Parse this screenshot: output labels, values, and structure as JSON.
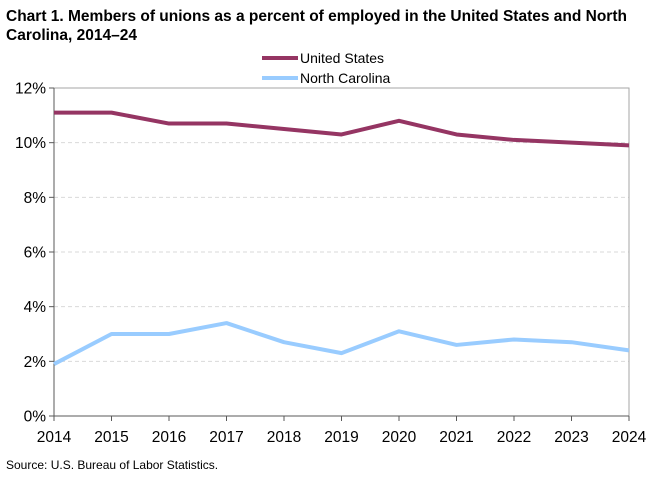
{
  "chart_data": {
    "type": "line",
    "title": "Chart 1. Members of unions as a percent of employed  in the United States and North Carolina, 2014–24",
    "xlabel": "",
    "ylabel": "",
    "x": [
      "2014",
      "2015",
      "2016",
      "2017",
      "2018",
      "2019",
      "2020",
      "2021",
      "2022",
      "2023",
      "2024"
    ],
    "ylim": [
      0,
      12
    ],
    "y_ticks": [
      {
        "value": 0,
        "label": "0%"
      },
      {
        "value": 2,
        "label": "2%"
      },
      {
        "value": 4,
        "label": "4%"
      },
      {
        "value": 6,
        "label": "6%"
      },
      {
        "value": 8,
        "label": "8%"
      },
      {
        "value": 10,
        "label": "10%"
      },
      {
        "value": 12,
        "label": "12%"
      }
    ],
    "grid": true,
    "legend_position": "top-center",
    "series": [
      {
        "name": "United States",
        "color": "#953563",
        "values": [
          11.1,
          11.1,
          10.7,
          10.7,
          10.5,
          10.3,
          10.8,
          10.3,
          10.1,
          10.0,
          9.9
        ]
      },
      {
        "name": "North Carolina",
        "color": "#99ccff",
        "values": [
          1.9,
          3.0,
          3.0,
          3.4,
          2.7,
          2.3,
          3.1,
          2.6,
          2.8,
          2.7,
          2.4
        ]
      }
    ],
    "source": "Source:  U.S. Bureau  of Labor Statistics."
  }
}
